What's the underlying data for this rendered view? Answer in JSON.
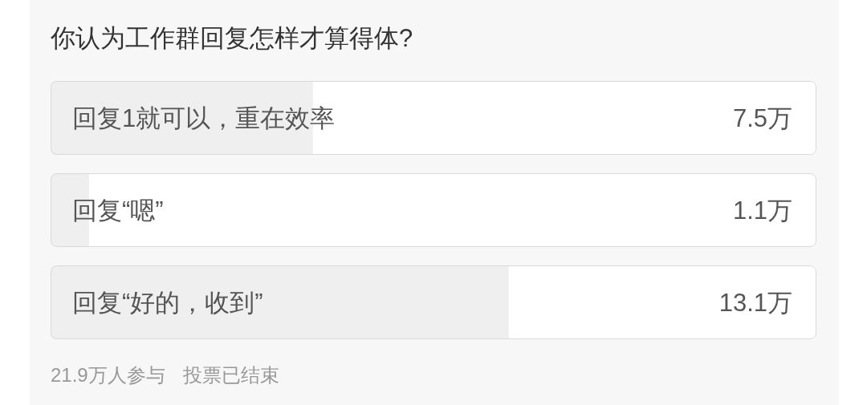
{
  "chart_data": {
    "type": "bar",
    "orientation": "horizontal",
    "title": "你认为工作群回复怎样才算得体?",
    "categories": [
      "回复1就可以，重在效率",
      "回复“嗯”",
      "回复“好的，收到”"
    ],
    "values": [
      7.5,
      1.1,
      13.1
    ],
    "value_labels": [
      "7.5万",
      "1.1万",
      "13.1万"
    ],
    "color": "#efefef",
    "xlim": [
      0,
      21.9
    ],
    "annotations": [
      "21.9万人参与",
      "投票已结束"
    ]
  }
}
